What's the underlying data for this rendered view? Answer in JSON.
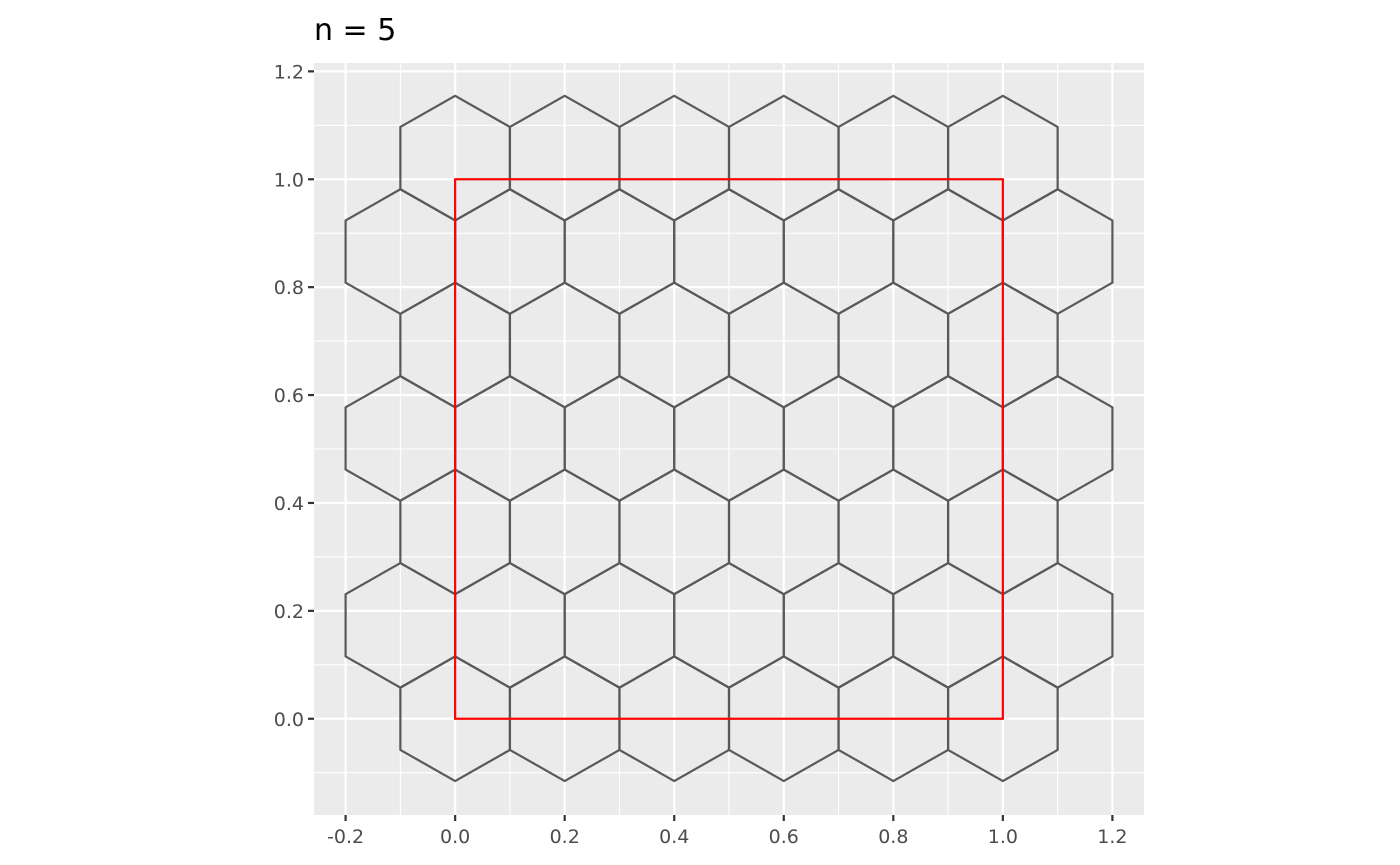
{
  "chart_data": {
    "type": "hexgrid",
    "title": "n = 5",
    "xlabel": "",
    "ylabel": "",
    "xlim": [
      -0.2577,
      1.2577
    ],
    "ylim": [
      -0.1784,
      1.2155
    ],
    "x_ticks": [
      -0.2,
      0.0,
      0.2,
      0.4,
      0.6,
      0.8,
      1.0,
      1.2
    ],
    "x_tick_labels": [
      "-0.2",
      "0.0",
      "0.2",
      "0.4",
      "0.6",
      "0.8",
      "1.0",
      "1.2"
    ],
    "y_ticks": [
      0.0,
      0.2,
      0.4,
      0.6,
      0.8,
      1.0,
      1.2
    ],
    "y_tick_labels": [
      "0.0",
      "0.2",
      "0.4",
      "0.6",
      "0.8",
      "1.0",
      "1.2"
    ],
    "grid": true,
    "hexagons": {
      "n": 5,
      "circumradius": 0.11547,
      "rows": [
        {
          "y": 0.0,
          "x_centers": [
            0.0,
            0.2,
            0.4,
            0.6,
            0.8,
            1.0
          ]
        },
        {
          "y": 0.1732,
          "x_centers": [
            -0.1,
            0.1,
            0.3,
            0.5,
            0.7,
            0.9,
            1.1
          ]
        },
        {
          "y": 0.3464,
          "x_centers": [
            0.0,
            0.2,
            0.4,
            0.6,
            0.8,
            1.0
          ]
        },
        {
          "y": 0.5196,
          "x_centers": [
            -0.1,
            0.1,
            0.3,
            0.5,
            0.7,
            0.9,
            1.1
          ]
        },
        {
          "y": 0.6928,
          "x_centers": [
            0.0,
            0.2,
            0.4,
            0.6,
            0.8,
            1.0
          ]
        },
        {
          "y": 0.866,
          "x_centers": [
            -0.1,
            0.1,
            0.3,
            0.5,
            0.7,
            0.9,
            1.1
          ]
        },
        {
          "y": 1.0392,
          "x_centers": [
            0.0,
            0.2,
            0.4,
            0.6,
            0.8,
            1.0
          ]
        }
      ]
    },
    "boundary": {
      "xmin": 0.0,
      "xmax": 1.0,
      "ymin": 0.0,
      "ymax": 1.0
    },
    "colors": {
      "panel_background": "#ebebeb",
      "grid": "#ffffff",
      "hexagon_stroke": "#595959",
      "boundary_stroke": "#ff0000",
      "tick": "#333333",
      "tick_label": "#4d4d4d"
    }
  }
}
